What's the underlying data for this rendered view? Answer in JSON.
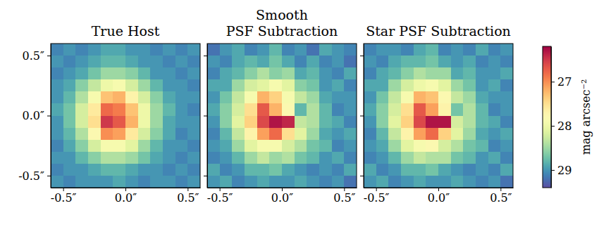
{
  "chart_data": [
    {
      "type": "heatmap",
      "title": "True Host",
      "x": [
        -0.55,
        -0.45,
        -0.35,
        -0.25,
        -0.15,
        -0.05,
        0.05,
        0.15,
        0.25,
        0.35,
        0.45,
        0.55
      ],
      "y": [
        0.55,
        0.45,
        0.35,
        0.25,
        0.15,
        0.05,
        -0.05,
        -0.15,
        -0.25,
        -0.35,
        -0.45,
        -0.55
      ],
      "values": [
        [
          29.1,
          29.0,
          29.1,
          29.0,
          28.9,
          28.9,
          29.0,
          29.0,
          29.1,
          29.0,
          29.1,
          29.0
        ],
        [
          29.0,
          29.1,
          29.0,
          28.9,
          28.8,
          28.8,
          28.9,
          29.0,
          29.0,
          29.1,
          29.0,
          29.1
        ],
        [
          29.1,
          29.0,
          28.9,
          28.7,
          28.5,
          28.5,
          28.6,
          28.8,
          29.0,
          29.0,
          29.1,
          29.0
        ],
        [
          29.0,
          28.9,
          28.6,
          28.3,
          28.0,
          27.9,
          28.2,
          28.5,
          28.8,
          29.0,
          29.0,
          29.1
        ],
        [
          29.0,
          28.8,
          28.4,
          27.9,
          27.3,
          27.2,
          27.7,
          28.2,
          28.6,
          28.9,
          29.0,
          29.0
        ],
        [
          28.9,
          28.7,
          28.2,
          27.6,
          26.8,
          26.9,
          27.3,
          28.0,
          28.5,
          28.8,
          29.0,
          29.1
        ],
        [
          29.0,
          28.7,
          28.2,
          27.5,
          26.5,
          26.7,
          27.2,
          28.0,
          28.5,
          28.9,
          29.0,
          29.0
        ],
        [
          29.0,
          28.8,
          28.4,
          27.8,
          27.0,
          27.1,
          27.6,
          28.2,
          28.6,
          28.9,
          29.1,
          29.0
        ],
        [
          29.1,
          28.9,
          28.6,
          28.2,
          27.9,
          27.9,
          28.1,
          28.5,
          28.8,
          29.0,
          29.0,
          29.1
        ],
        [
          29.0,
          29.0,
          28.8,
          28.6,
          28.4,
          28.4,
          28.5,
          28.7,
          28.9,
          29.0,
          29.1,
          29.0
        ],
        [
          29.1,
          29.0,
          29.0,
          28.9,
          28.8,
          28.8,
          28.9,
          29.0,
          29.0,
          29.1,
          29.0,
          29.1
        ],
        [
          29.0,
          29.1,
          29.0,
          29.0,
          29.0,
          28.9,
          29.0,
          29.1,
          29.0,
          29.0,
          29.1,
          29.0
        ]
      ],
      "xlim": [
        -0.6,
        0.6
      ],
      "ylim": [
        -0.6,
        0.6
      ],
      "xticks": [
        {
          "value": -0.5,
          "label": "-0.5″"
        },
        {
          "value": 0,
          "label": "0.0″"
        },
        {
          "value": 0.5,
          "label": "0.5″"
        }
      ],
      "yticks": [
        {
          "value": -0.5,
          "label": "-0.5″"
        },
        {
          "value": 0,
          "label": "0.0″"
        },
        {
          "value": 0.5,
          "label": "0.5″"
        }
      ]
    },
    {
      "type": "heatmap",
      "title": "Smooth PSF Subtraction",
      "x": [
        -0.55,
        -0.45,
        -0.35,
        -0.25,
        -0.15,
        -0.05,
        0.05,
        0.15,
        0.25,
        0.35,
        0.45,
        0.55
      ],
      "y": [
        0.55,
        0.45,
        0.35,
        0.25,
        0.15,
        0.05,
        -0.05,
        -0.15,
        -0.25,
        -0.35,
        -0.45,
        -0.55
      ],
      "values": [
        [
          29.2,
          29.0,
          28.9,
          29.1,
          29.0,
          28.8,
          29.1,
          29.0,
          29.2,
          28.9,
          29.0,
          29.1
        ],
        [
          29.0,
          29.1,
          28.9,
          28.8,
          28.9,
          28.7,
          28.9,
          29.1,
          28.9,
          29.1,
          29.0,
          29.2
        ],
        [
          29.1,
          28.9,
          28.8,
          28.6,
          28.4,
          28.6,
          28.5,
          28.9,
          28.8,
          29.0,
          29.1,
          28.9
        ],
        [
          28.9,
          28.9,
          28.5,
          28.2,
          28.1,
          27.9,
          28.1,
          28.6,
          28.7,
          29.0,
          28.9,
          29.1
        ],
        [
          29.0,
          28.7,
          28.3,
          27.9,
          27.2,
          27.4,
          27.9,
          28.3,
          28.5,
          28.9,
          29.0,
          29.0
        ],
        [
          28.9,
          28.6,
          28.2,
          27.5,
          26.7,
          27.2,
          27.8,
          28.8,
          28.4,
          28.8,
          29.1,
          29.0
        ],
        [
          29.0,
          28.6,
          28.1,
          27.4,
          26.6,
          26.3,
          26.4,
          28.3,
          28.4,
          28.8,
          28.9,
          29.1
        ],
        [
          29.1,
          28.8,
          28.3,
          27.7,
          27.1,
          26.8,
          27.5,
          28.1,
          28.5,
          28.9,
          29.0,
          28.9
        ],
        [
          29.0,
          28.9,
          28.5,
          28.1,
          27.9,
          27.9,
          28.2,
          28.4,
          28.7,
          28.8,
          29.1,
          29.0
        ],
        [
          29.1,
          29.0,
          28.8,
          28.5,
          28.3,
          28.5,
          28.4,
          28.7,
          28.8,
          29.0,
          28.9,
          29.1
        ],
        [
          28.9,
          29.1,
          29.0,
          28.8,
          28.8,
          28.7,
          28.9,
          29.0,
          29.1,
          29.0,
          29.1,
          28.9
        ],
        [
          29.0,
          28.9,
          29.1,
          29.0,
          28.9,
          29.0,
          29.0,
          28.9,
          29.0,
          29.1,
          29.0,
          29.2
        ]
      ],
      "xlim": [
        -0.6,
        0.6
      ],
      "ylim": [
        -0.6,
        0.6
      ],
      "xticks": [
        {
          "value": -0.5,
          "label": "-0.5″"
        },
        {
          "value": 0,
          "label": "0.0″"
        },
        {
          "value": 0.5,
          "label": "0.5″"
        }
      ],
      "yticks": [
        -0.5,
        0,
        0.5
      ],
      "tick_labels": "x"
    },
    {
      "type": "heatmap",
      "title": "Star PSF Subtraction",
      "x": [
        -0.55,
        -0.45,
        -0.35,
        -0.25,
        -0.15,
        -0.05,
        0.05,
        0.15,
        0.25,
        0.35,
        0.45,
        0.55
      ],
      "y": [
        0.55,
        0.45,
        0.35,
        0.25,
        0.15,
        0.05,
        -0.05,
        -0.15,
        -0.25,
        -0.35,
        -0.45,
        -0.55
      ],
      "values": [
        [
          29.1,
          29.0,
          29.0,
          29.1,
          28.9,
          28.8,
          29.1,
          29.0,
          29.1,
          28.9,
          29.1,
          29.0
        ],
        [
          29.0,
          29.1,
          28.9,
          28.8,
          28.8,
          28.7,
          28.9,
          29.0,
          28.9,
          29.1,
          29.0,
          29.1
        ],
        [
          29.1,
          28.9,
          28.8,
          28.6,
          28.4,
          28.5,
          28.5,
          28.9,
          28.8,
          29.0,
          29.0,
          28.9
        ],
        [
          28.9,
          28.9,
          28.5,
          28.2,
          28.0,
          27.9,
          28.1,
          28.5,
          28.7,
          29.0,
          28.9,
          29.1
        ],
        [
          29.0,
          28.7,
          28.3,
          27.9,
          27.2,
          27.3,
          27.8,
          28.3,
          28.5,
          28.9,
          29.0,
          29.0
        ],
        [
          28.9,
          28.6,
          28.2,
          27.5,
          26.7,
          27.1,
          27.7,
          28.7,
          28.4,
          28.8,
          29.1,
          29.0
        ],
        [
          29.0,
          28.6,
          28.1,
          27.4,
          26.6,
          26.3,
          26.3,
          28.2,
          28.4,
          28.8,
          28.9,
          29.1
        ],
        [
          29.1,
          28.8,
          28.3,
          27.7,
          27.1,
          26.8,
          27.4,
          28.1,
          28.5,
          28.9,
          29.0,
          28.9
        ],
        [
          29.0,
          28.9,
          28.5,
          28.1,
          27.9,
          27.8,
          28.2,
          28.4,
          28.7,
          28.8,
          29.1,
          29.0
        ],
        [
          29.1,
          29.0,
          28.8,
          28.5,
          28.3,
          28.4,
          28.4,
          28.7,
          28.8,
          29.0,
          28.9,
          29.1
        ],
        [
          28.9,
          29.1,
          29.0,
          28.8,
          28.8,
          28.7,
          28.9,
          29.0,
          29.1,
          29.0,
          29.1,
          28.9
        ],
        [
          29.0,
          28.9,
          29.1,
          29.0,
          28.9,
          29.0,
          29.0,
          28.9,
          29.0,
          29.1,
          29.0,
          29.2
        ]
      ],
      "xlim": [
        -0.6,
        0.6
      ],
      "ylim": [
        -0.6,
        0.6
      ],
      "xticks": [
        {
          "value": -0.5,
          "label": "-0.5″"
        },
        {
          "value": 0,
          "label": "0.0″"
        },
        {
          "value": 0.5,
          "label": "0.5″"
        }
      ],
      "yticks": [
        -0.5,
        0,
        0.5
      ],
      "tick_labels": "x",
      "colorbar": {
        "label": "mag arcsec⁻²",
        "range": [
          26.2,
          29.4
        ],
        "ticks": [
          27,
          28,
          29
        ]
      }
    }
  ]
}
